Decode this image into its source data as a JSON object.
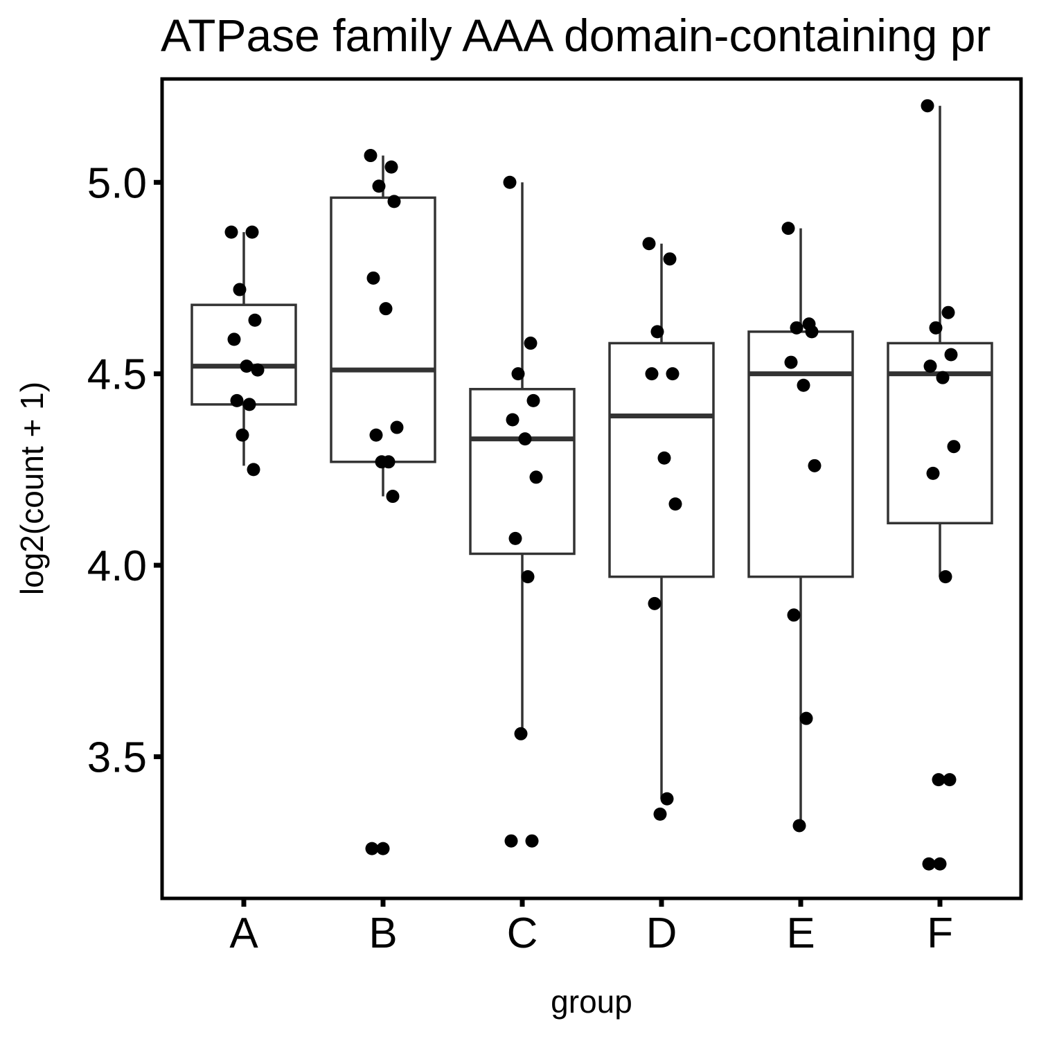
{
  "chart_data": {
    "type": "box",
    "title": "ATPase family AAA domain-containing pr",
    "xlabel": "group",
    "ylabel": "log2(count + 1)",
    "categories": [
      "A",
      "B",
      "C",
      "D",
      "E",
      "F"
    ],
    "yticks": [
      3.5,
      4.0,
      4.5,
      5.0
    ],
    "ytick_labels": [
      "3.5",
      "4.0",
      "4.5",
      "5.0"
    ],
    "ylim": [
      3.13,
      5.27
    ],
    "grid": false,
    "legend": "none",
    "boxes": [
      {
        "group": "A",
        "whisker_low": 4.26,
        "q1": 4.42,
        "median": 4.52,
        "q3": 4.68,
        "whisker_high": 4.87
      },
      {
        "group": "B",
        "whisker_low": 4.18,
        "q1": 4.27,
        "median": 4.51,
        "q3": 4.96,
        "whisker_high": 5.07
      },
      {
        "group": "C",
        "whisker_low": 3.56,
        "q1": 4.03,
        "median": 4.33,
        "q3": 4.46,
        "whisker_high": 5.0
      },
      {
        "group": "D",
        "whisker_low": 3.39,
        "q1": 3.97,
        "median": 4.39,
        "q3": 4.58,
        "whisker_high": 4.84
      },
      {
        "group": "E",
        "whisker_low": 3.33,
        "q1": 3.97,
        "median": 4.5,
        "q3": 4.61,
        "whisker_high": 4.88
      },
      {
        "group": "F",
        "whisker_low": 3.97,
        "q1": 4.11,
        "median": 4.5,
        "q3": 4.58,
        "whisker_high": 5.2
      }
    ],
    "points": [
      {
        "group": "A",
        "values": [
          4.87,
          4.87,
          4.72,
          4.64,
          4.59,
          4.52,
          4.51,
          4.43,
          4.42,
          4.34,
          4.25
        ]
      },
      {
        "group": "B",
        "values": [
          5.07,
          5.04,
          4.99,
          4.95,
          4.75,
          4.67,
          4.36,
          4.34,
          4.27,
          4.27,
          4.18,
          3.26,
          3.26
        ]
      },
      {
        "group": "C",
        "values": [
          5.0,
          4.58,
          4.5,
          4.43,
          4.38,
          4.33,
          4.23,
          4.07,
          3.97,
          3.56,
          3.28,
          3.28
        ]
      },
      {
        "group": "D",
        "values": [
          4.84,
          4.8,
          4.61,
          4.5,
          4.5,
          4.28,
          4.16,
          3.9,
          3.39,
          3.35
        ]
      },
      {
        "group": "E",
        "values": [
          4.88,
          4.63,
          4.62,
          4.61,
          4.53,
          4.47,
          4.26,
          3.87,
          3.6,
          3.32
        ]
      },
      {
        "group": "F",
        "values": [
          5.2,
          4.66,
          4.62,
          4.55,
          4.52,
          4.49,
          4.31,
          4.24,
          3.97,
          3.44,
          3.44,
          3.22,
          3.22
        ]
      }
    ]
  }
}
